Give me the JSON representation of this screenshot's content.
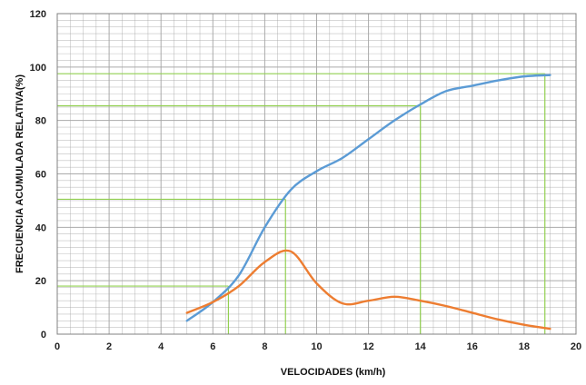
{
  "chart_data": {
    "type": "line",
    "title": "",
    "xlabel": "VELOCIDADES (km/h)",
    "ylabel": "FRECUENCIA ACUMULADA RELATIVA(%)",
    "xlim": [
      0,
      20
    ],
    "ylim": [
      0,
      120
    ],
    "x_ticks": [
      "0",
      "2",
      "4",
      "6",
      "8",
      "10",
      "12",
      "14",
      "16",
      "18",
      "20"
    ],
    "y_ticks": [
      "0",
      "20",
      "40",
      "60",
      "80",
      "100",
      "120"
    ],
    "grid": true,
    "legend": "none",
    "series": [
      {
        "color": "#5b9bd5",
        "x": [
          5,
          6,
          7,
          8,
          9,
          10,
          11,
          12,
          13,
          14,
          15,
          16,
          17,
          18,
          19
        ],
        "y": [
          5,
          12,
          22,
          40,
          54,
          61,
          66,
          73,
          80,
          86,
          91,
          93,
          95,
          96.5,
          97
        ]
      },
      {
        "color": "#ed7d31",
        "x": [
          5,
          6,
          7,
          8,
          9,
          10,
          11,
          12,
          13,
          14,
          15,
          16,
          17,
          18,
          19
        ],
        "y": [
          8,
          12,
          18,
          27,
          31,
          19,
          11.5,
          12.5,
          14,
          12.5,
          10.5,
          8,
          5.5,
          3.5,
          2
        ]
      }
    ],
    "reference_lines": [
      {
        "color": "#92d050",
        "y": 97.5,
        "x": 18.8
      },
      {
        "color": "#92d050",
        "y": 85.5,
        "x": 14
      },
      {
        "color": "#92d050",
        "y": 50.5,
        "x": 8.8
      },
      {
        "color": "#92d050",
        "y": 18,
        "x": 6.6
      }
    ],
    "grid_color": "#a6a6a6"
  }
}
